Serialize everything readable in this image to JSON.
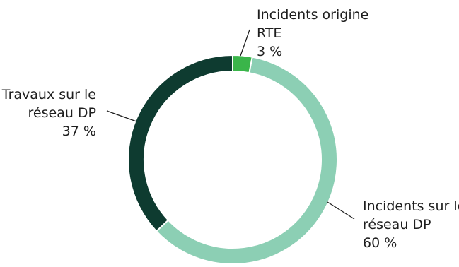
{
  "chart_data": {
    "type": "pie",
    "variant": "donut",
    "slices": [
      {
        "label_lines": [
          "Incidents origine",
          "RTE"
        ],
        "percent_label": "3 %",
        "value": 3,
        "color": "#3ab54a"
      },
      {
        "label_lines": [
          "Incidents sur le",
          "réseau DP"
        ],
        "percent_label": "60 %",
        "value": 60,
        "color": "#8ccfb4"
      },
      {
        "label_lines": [
          "Travaux sur le",
          "réseau DP"
        ],
        "percent_label": "37 %",
        "value": 37,
        "color": "#0e3b30"
      }
    ],
    "legend": "none"
  }
}
